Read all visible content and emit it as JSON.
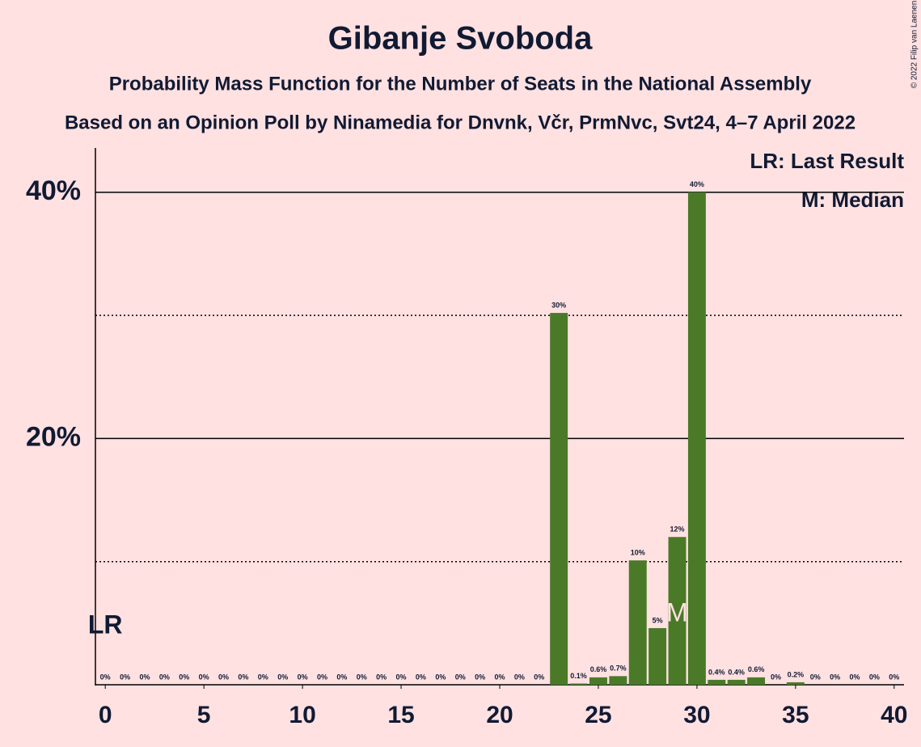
{
  "chart_data": {
    "type": "bar",
    "title": "Gibanje Svoboda",
    "subtitle": "Probability Mass Function for the Number of Seats in the National Assembly",
    "source": "Based on an Opinion Poll by Ninamedia for Dnvnk, Včr, PrmNvc, Svt24, 4–7 April 2022",
    "copyright": "© 2022 Filip van Laenen",
    "legend": [
      "LR: Last Result",
      "M: Median"
    ],
    "color": "#4a7a28",
    "x": [
      0,
      1,
      2,
      3,
      4,
      5,
      6,
      7,
      8,
      9,
      10,
      11,
      12,
      13,
      14,
      15,
      16,
      17,
      18,
      19,
      20,
      21,
      22,
      23,
      24,
      25,
      26,
      27,
      28,
      29,
      30,
      31,
      32,
      33,
      34,
      35,
      36,
      37,
      38,
      39,
      40
    ],
    "values": [
      0,
      0,
      0,
      0,
      0,
      0,
      0,
      0,
      0,
      0,
      0,
      0,
      0,
      0,
      0,
      0,
      0,
      0,
      0,
      0,
      0,
      0,
      0,
      30.2,
      0.1,
      0.6,
      0.7,
      10.1,
      4.6,
      12,
      40,
      0.4,
      0.4,
      0.6,
      0,
      0.2,
      0,
      0,
      0,
      0,
      0
    ],
    "value_labels": [
      "0%",
      "0%",
      "0%",
      "0%",
      "0%",
      "0%",
      "0%",
      "0%",
      "0%",
      "0%",
      "0%",
      "0%",
      "0%",
      "0%",
      "0%",
      "0%",
      "0%",
      "0%",
      "0%",
      "0%",
      "0%",
      "0%",
      "0%",
      "30%",
      "0.1%",
      "0.6%",
      "0.7%",
      "10%",
      "5%",
      "12%",
      "40%",
      "0.4%",
      "0.4%",
      "0.6%",
      "0%",
      "0.2%",
      "0%",
      "0%",
      "0%",
      "0%",
      "0%"
    ],
    "last_result": {
      "x": 0,
      "label": "LR"
    },
    "median": {
      "x": 29,
      "label": "M"
    },
    "xlim": [
      -0.5,
      40.5
    ],
    "xticks": [
      0,
      5,
      10,
      15,
      20,
      25,
      30,
      35,
      40
    ],
    "ylim": [
      0,
      43.6
    ],
    "yticks": [
      {
        "value": 20,
        "label": "20%"
      },
      {
        "value": 40,
        "label": "40%"
      }
    ],
    "minor_yticks": [
      10,
      30
    ],
    "grid": true
  }
}
